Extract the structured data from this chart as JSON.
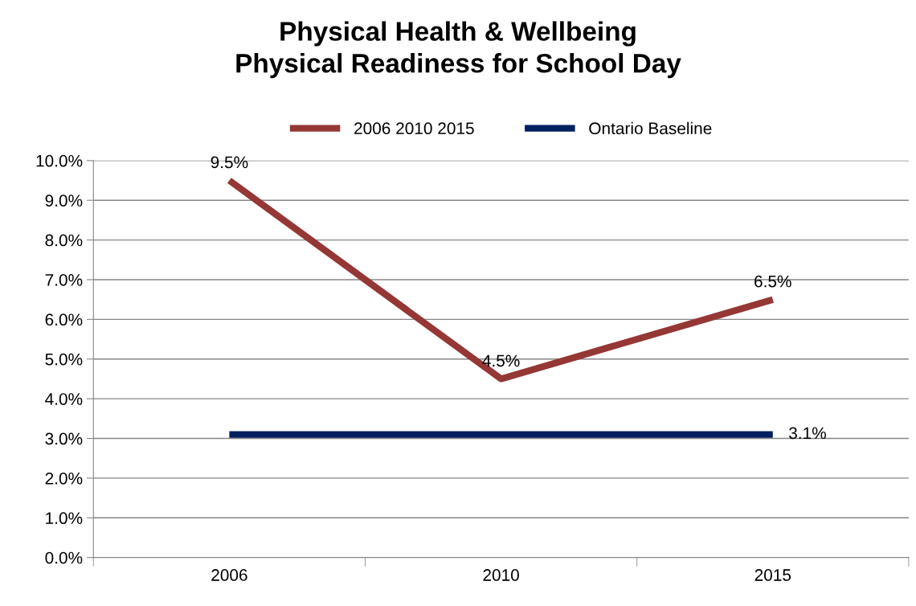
{
  "chart_data": {
    "type": "line",
    "title": "Physical Health & Wellbeing\nPhysical Readiness for School Day",
    "categories": [
      "2006",
      "2010",
      "2015"
    ],
    "series": [
      {
        "name": "2006 2010 2015",
        "color": "#953735",
        "values": [
          9.5,
          4.5,
          6.5
        ],
        "value_labels": [
          "9.5%",
          "4.5%",
          "6.5%"
        ]
      },
      {
        "name": "Ontario Baseline",
        "color": "#002060",
        "values": [
          3.1,
          3.1,
          3.1
        ],
        "value_labels": [
          null,
          null,
          "3.1%"
        ]
      }
    ],
    "ylim": [
      0,
      10
    ],
    "yticks": [
      {
        "value": 0,
        "label": "0.0%"
      },
      {
        "value": 1,
        "label": "1.0%"
      },
      {
        "value": 2,
        "label": "2.0%"
      },
      {
        "value": 3,
        "label": "3.0%"
      },
      {
        "value": 4,
        "label": "4.0%"
      },
      {
        "value": 5,
        "label": "5.0%"
      },
      {
        "value": 6,
        "label": "6.0%"
      },
      {
        "value": 7,
        "label": "7.0%"
      },
      {
        "value": 8,
        "label": "8.0%"
      },
      {
        "value": 9,
        "label": "9.0%"
      },
      {
        "value": 10,
        "label": "10.0%"
      }
    ],
    "grid": "y",
    "legend": "top",
    "marker": "none",
    "line_style": "solid"
  }
}
